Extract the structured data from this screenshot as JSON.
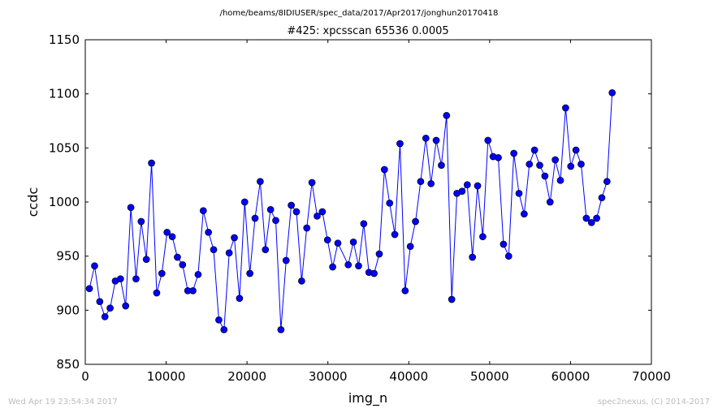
{
  "chart_data": {
    "type": "line",
    "suptitle": "/home/beams/8IDIUSER/spec_data/2017/Apr2017/jonghun20170418",
    "title": "#425: xpcsscan 65536 0.0005",
    "xlabel": "img_n",
    "ylabel": "ccdc",
    "xlim": [
      0,
      70000
    ],
    "ylim": [
      850,
      1150
    ],
    "xticks": [
      0,
      10000,
      20000,
      30000,
      40000,
      50000,
      60000,
      70000
    ],
    "yticks": [
      850,
      900,
      950,
      1000,
      1050,
      1100,
      1150
    ],
    "grid": false,
    "legend": "none",
    "series_color": "#0000ff",
    "marker": "circle",
    "series": [
      {
        "x": [
          512,
          1152,
          1792,
          2432,
          3072,
          3712,
          4352,
          4992,
          5632,
          6272,
          6912,
          7552,
          8192,
          8832,
          9472,
          10112,
          10752,
          11392,
          12032,
          12672,
          13312,
          13952,
          14592,
          15232,
          15872,
          16512,
          17152,
          17792,
          18432,
          19072,
          19712,
          20352,
          20992,
          21632,
          22272,
          22912,
          23552,
          24192,
          24832,
          25472,
          26112,
          26752,
          27392,
          28032,
          28672,
          29312,
          29952,
          30592,
          31232,
          32512,
          33152,
          33792,
          34432,
          35072,
          35712,
          36352,
          36992,
          37632,
          38272,
          38912,
          39552,
          40192,
          40832,
          41472,
          42112,
          42752,
          43392,
          44032,
          44672,
          45312,
          45952,
          46592,
          47232,
          47872,
          48512,
          49152,
          49792,
          50432,
          51072,
          51712,
          52352,
          52992,
          53632,
          54272,
          54912,
          55552,
          56192,
          56832,
          57472,
          58112,
          58752,
          59392,
          60032,
          60672,
          61312,
          61952,
          62592,
          63232,
          63872,
          64512,
          65152
        ],
        "y": [
          920,
          941,
          908,
          894,
          902,
          927,
          929,
          904,
          995,
          929,
          982,
          947,
          1036,
          916,
          934,
          972,
          968,
          949,
          942,
          918,
          918,
          933,
          992,
          972,
          956,
          891,
          882,
          953,
          967,
          911,
          1000,
          934,
          985,
          1019,
          956,
          993,
          983,
          882,
          946,
          997,
          991,
          927,
          976,
          1018,
          987,
          991,
          965,
          940,
          962,
          942,
          963,
          941,
          980,
          935,
          934,
          952,
          1030,
          999,
          970,
          1054,
          918,
          959,
          982,
          1019,
          1059,
          1017,
          1057,
          1034,
          1080,
          910,
          1008,
          1010,
          1016,
          949,
          1015,
          968,
          1057,
          1042,
          1041,
          961,
          950,
          1045,
          1008,
          989,
          1035,
          1048,
          1034,
          1024,
          1000,
          1039,
          1020,
          1087,
          1033,
          1048,
          1035,
          985,
          981,
          985,
          1004,
          1019,
          1101
        ]
      }
    ]
  },
  "footer": {
    "left": "Wed Apr 19 23:54:34 2017",
    "right": "spec2nexus, (C) 2014-2017"
  }
}
